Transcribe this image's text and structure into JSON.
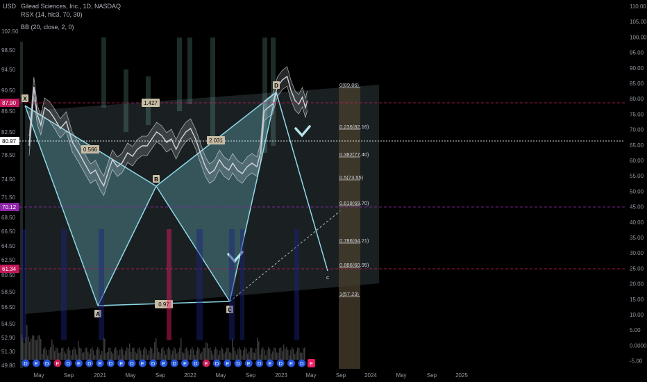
{
  "header": {
    "currency": "USD",
    "symbol_title": "Gilead Sciences, Inc., 1D, NASDAQ",
    "indicator_rsx": "RSX (14, hlc3, 70, 30)",
    "indicator_bb": "BB (20, close, 2, 0)"
  },
  "colors": {
    "background": "#000000",
    "price_line": "#d1d4dc",
    "pattern_fill": "#5fb6c4",
    "pattern_line": "#8fd8e8",
    "fib_fill": "#4a3f2e",
    "fib_line": "#cfcfcf",
    "magenta_level": "#c2185b",
    "purple_level": "#8e24aa",
    "rsx_green": "#aee3d9",
    "volume": "#3a3a3a",
    "earnings_blue": "#2962ff",
    "earnings_magenta": "#e91e63"
  },
  "chart_data": {
    "type": "line",
    "title": "Gilead Sciences, Inc., 1D, NASDAQ",
    "left_axis": {
      "label": "USD",
      "ticks": [
        "102.50",
        "98.50",
        "94.50",
        "90.50",
        "86.50",
        "82.50",
        "78.50",
        "74.50",
        "71.50",
        "68.50",
        "66.50",
        "64.50",
        "62.50",
        "60.50",
        "58.50",
        "56.50",
        "54.50",
        "52.90",
        "51.30",
        "49.80"
      ]
    },
    "right_axis": {
      "ticks": [
        "110.00",
        "105.00",
        "100.00",
        "95.00",
        "90.00",
        "85.00",
        "80.00",
        "75.00",
        "70.00",
        "65.00",
        "60.00",
        "55.00",
        "50.00",
        "45.00",
        "40.00",
        "35.00",
        "30.00",
        "25.00",
        "20.00",
        "15.00",
        "10.00",
        "5.00",
        "0.0000",
        "-5.00"
      ]
    },
    "x_axis": {
      "ticks": [
        "May",
        "Sep",
        "2021",
        "May",
        "Sep",
        "2022",
        "May",
        "Sep",
        "2023",
        "May",
        "Sep",
        "2024",
        "May",
        "Sep",
        "2025"
      ]
    },
    "price_badges": [
      {
        "label": "87.90",
        "value": 87.9,
        "color": "#c2185b"
      },
      {
        "label": "80.97",
        "value": 80.97,
        "color": "#ffffff"
      },
      {
        "label": "70.12",
        "value": 70.12,
        "color": "#8e24aa"
      },
      {
        "label": "61.34",
        "value": 61.34,
        "color": "#c2185b"
      }
    ],
    "harmonic_points": [
      {
        "label": "X",
        "date": "2020-02-25",
        "price": 85.9
      },
      {
        "label": "A",
        "date": "2020-12-10",
        "price": 56.5
      },
      {
        "label": "B",
        "date": "2021-07-20",
        "price": 73.0
      },
      {
        "label": "C",
        "date": "2022-07-25",
        "price": 57.3
      },
      {
        "label": "D",
        "date": "2023-02-01",
        "price": 89.86
      },
      {
        "label": "c",
        "date": "2023-09-10",
        "price": 59.0
      }
    ],
    "ratios": [
      {
        "label": "1.427"
      },
      {
        "label": "0.566"
      },
      {
        "label": "2.031"
      },
      {
        "label": "0.97"
      }
    ],
    "fib_levels": [
      {
        "label": "0(89.86)",
        "price": 89.86
      },
      {
        "label": "0.236(82.16)",
        "price": 82.16
      },
      {
        "label": "0.382(77.40)",
        "price": 77.4
      },
      {
        "label": "0.5(73.55)",
        "price": 73.55
      },
      {
        "label": "0.618(69.70)",
        "price": 69.7
      },
      {
        "label": "0.786(64.21)",
        "price": 64.21
      },
      {
        "label": "0.886(60.95)",
        "price": 60.95
      },
      {
        "label": "1(57.23)",
        "price": 57.23
      }
    ],
    "price_series": [
      {
        "date": "2020-02-05",
        "close": 68
      },
      {
        "date": "2020-02-25",
        "close": 85
      },
      {
        "date": "2020-03-10",
        "close": 77
      },
      {
        "date": "2020-03-25",
        "close": 74
      },
      {
        "date": "2020-04-10",
        "close": 79
      },
      {
        "date": "2020-04-30",
        "close": 78
      },
      {
        "date": "2020-05-20",
        "close": 76
      },
      {
        "date": "2020-06-15",
        "close": 73
      },
      {
        "date": "2020-07-10",
        "close": 75
      },
      {
        "date": "2020-08-05",
        "close": 69
      },
      {
        "date": "2020-09-01",
        "close": 66
      },
      {
        "date": "2020-09-25",
        "close": 63
      },
      {
        "date": "2020-10-20",
        "close": 60
      },
      {
        "date": "2020-11-10",
        "close": 61
      },
      {
        "date": "2020-12-01",
        "close": 58
      },
      {
        "date": "2020-12-15",
        "close": 56.5
      },
      {
        "date": "2021-01-05",
        "close": 61
      },
      {
        "date": "2021-01-20",
        "close": 64
      },
      {
        "date": "2021-02-10",
        "close": 62
      },
      {
        "date": "2021-03-01",
        "close": 63
      },
      {
        "date": "2021-03-25",
        "close": 66
      },
      {
        "date": "2021-04-15",
        "close": 65
      },
      {
        "date": "2021-05-05",
        "close": 67
      },
      {
        "date": "2021-05-25",
        "close": 68
      },
      {
        "date": "2021-06-15",
        "close": 68
      },
      {
        "date": "2021-07-05",
        "close": 70
      },
      {
        "date": "2021-07-25",
        "close": 72
      },
      {
        "date": "2021-08-15",
        "close": 71
      },
      {
        "date": "2021-09-05",
        "close": 69
      },
      {
        "date": "2021-09-25",
        "close": 70
      },
      {
        "date": "2021-10-15",
        "close": 67
      },
      {
        "date": "2021-11-05",
        "close": 70
      },
      {
        "date": "2021-11-25",
        "close": 72
      },
      {
        "date": "2021-12-15",
        "close": 73
      },
      {
        "date": "2022-01-05",
        "close": 70
      },
      {
        "date": "2022-01-25",
        "close": 66
      },
      {
        "date": "2022-02-15",
        "close": 62
      },
      {
        "date": "2022-03-05",
        "close": 60
      },
      {
        "date": "2022-03-25",
        "close": 61
      },
      {
        "date": "2022-04-15",
        "close": 64
      },
      {
        "date": "2022-05-05",
        "close": 62
      },
      {
        "date": "2022-05-25",
        "close": 61
      },
      {
        "date": "2022-06-10",
        "close": 63
      },
      {
        "date": "2022-06-30",
        "close": 61
      },
      {
        "date": "2022-07-20",
        "close": 60
      },
      {
        "date": "2022-08-10",
        "close": 62
      },
      {
        "date": "2022-08-30",
        "close": 63
      },
      {
        "date": "2022-09-20",
        "close": 62
      },
      {
        "date": "2022-10-05",
        "close": 66
      },
      {
        "date": "2022-10-20",
        "close": 78
      },
      {
        "date": "2022-11-05",
        "close": 79
      },
      {
        "date": "2022-11-25",
        "close": 80
      },
      {
        "date": "2022-12-15",
        "close": 85
      },
      {
        "date": "2023-01-05",
        "close": 87
      },
      {
        "date": "2023-01-25",
        "close": 88
      },
      {
        "date": "2023-02-10",
        "close": 84
      },
      {
        "date": "2023-02-28",
        "close": 81
      },
      {
        "date": "2023-03-15",
        "close": 80
      },
      {
        "date": "2023-03-30",
        "close": 82
      },
      {
        "date": "2023-04-12",
        "close": 79
      },
      {
        "date": "2023-04-20",
        "close": 81
      }
    ]
  },
  "earnings_markers": {
    "letters": [
      "D",
      "E",
      "D",
      "E",
      "D",
      "E",
      "D",
      "E",
      "D",
      "E",
      "D",
      "E",
      "D",
      "E",
      "D",
      "E",
      "D",
      "E",
      "D",
      "E",
      "D",
      "E",
      "D",
      "E",
      "D",
      "E",
      "D"
    ],
    "future_letter": "E"
  }
}
